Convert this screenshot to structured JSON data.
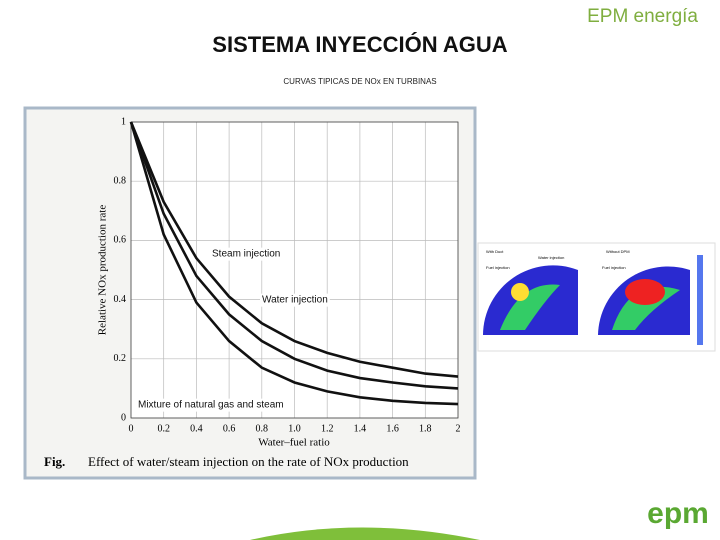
{
  "slide": {
    "title": "SISTEMA INYECCIÓN AGUA",
    "subtitle": "CURVAS TIPICAS DE NOx EN TURBINAS",
    "brand": "EPM energía",
    "logo": "epm"
  },
  "chart_data": {
    "type": "line",
    "ylabel": "Relative NOx production rate",
    "xlabel": "Water–fuel ratio",
    "caption_label": "Fig.",
    "caption": "Effect of water/steam injection on the rate of NOx production",
    "x": [
      0,
      0.2,
      0.4,
      0.6,
      0.8,
      1.0,
      1.2,
      1.4,
      1.6,
      1.8,
      2
    ],
    "series": [
      {
        "name": "Steam injection",
        "color": "#111111",
        "values": [
          1,
          0.73,
          0.54,
          0.41,
          0.32,
          0.26,
          0.22,
          0.19,
          0.17,
          0.15,
          0.14
        ]
      },
      {
        "name": "Water injection",
        "color": "#111111",
        "values": [
          1,
          0.69,
          0.48,
          0.35,
          0.26,
          0.2,
          0.16,
          0.135,
          0.12,
          0.107,
          0.1
        ]
      },
      {
        "name": "Mixture of natural gas and steam",
        "color": "#111111",
        "values": [
          1,
          0.62,
          0.39,
          0.26,
          0.17,
          0.12,
          0.09,
          0.07,
          0.058,
          0.051,
          0.047
        ]
      }
    ],
    "xlim": [
      0,
      2
    ],
    "ylim": [
      0,
      1
    ],
    "xticks": [
      0,
      0.2,
      0.4,
      0.6,
      0.8,
      {
        "value": 1,
        "label": "1.0"
      },
      1.2,
      1.4,
      1.6,
      1.8,
      2
    ],
    "yticks": [
      0,
      0.2,
      0.4,
      0.6,
      0.8,
      1
    ],
    "grid": true
  },
  "figure2": {
    "labels": [
      "With Duct",
      "Without DPM",
      "Water injection",
      "Fuel injection",
      "Fuel injection"
    ]
  }
}
